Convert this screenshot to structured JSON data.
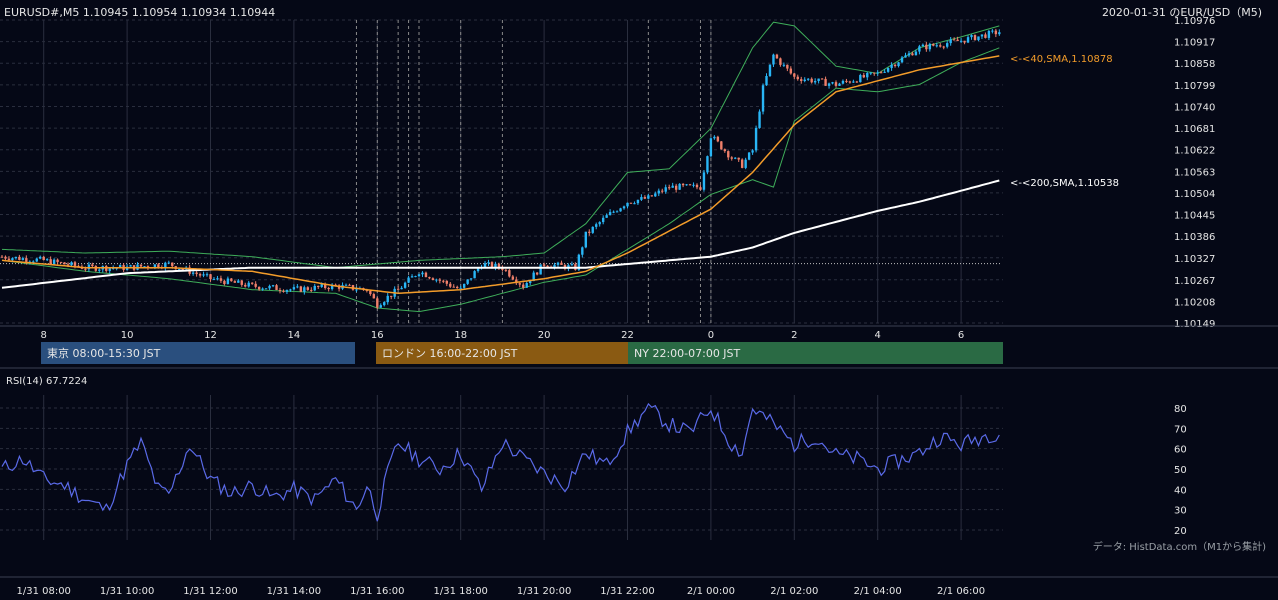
{
  "header": {
    "symbol_line": "EURUSD#,M5 1.10945 1.10954 1.10934 1.10944",
    "title": "2020-01-31 のEUR/USD（M5)"
  },
  "price_axis": {
    "ticks": [
      "1.10976",
      "1.10917",
      "1.10858",
      "1.10799",
      "1.10740",
      "1.10681",
      "1.10622",
      "1.10563",
      "1.10504",
      "1.10445",
      "1.10386",
      "1.10327",
      "1.10267",
      "1.10208",
      "1.10149"
    ]
  },
  "time_axis": {
    "hour_ticks": [
      "8",
      "10",
      "12",
      "14",
      "16",
      "18",
      "20",
      "22",
      "0",
      "2",
      "4",
      "6"
    ],
    "date_ticks": [
      "1/31 08:00",
      "1/31 10:00",
      "1/31 12:00",
      "1/31 14:00",
      "1/31 16:00",
      "1/31 18:00",
      "1/31 20:00",
      "1/31 22:00",
      "2/1 00:00",
      "2/1 02:00",
      "2/1 04:00",
      "2/1 06:00"
    ]
  },
  "sessions": [
    {
      "label": "東京 08:00-15:30 JST",
      "color": "#2a4f7e"
    },
    {
      "label": "ロンドン 16:00-22:00 JST",
      "color": "#8a5a12"
    },
    {
      "label": "NY 22:00-07:00 JST",
      "color": "#2a6a44"
    }
  ],
  "sma_labels": {
    "sma40": "<-<40,SMA,1.10878",
    "sma200": "<-<200,SMA,1.10538"
  },
  "rsi": {
    "label": "RSI(14) 67.7224",
    "ticks": [
      "80",
      "70",
      "60",
      "50",
      "40",
      "30",
      "20"
    ]
  },
  "source_note": "データ: HistData.com（M1から集計)",
  "colors": {
    "background": "#050816",
    "up_candle": "#29b6f6",
    "down_candle": "#ef7f6a",
    "sma40": "#f39c2a",
    "sma200": "#ffffff",
    "bollinger": "#3fae5a",
    "rsi_line": "#5a6ae8",
    "grid": "#2a2e3e"
  },
  "chart_data": [
    {
      "type": "candlestick",
      "title": "2020-01-31 のEUR/USD（M5)",
      "x_range": [
        "1/31 07:00",
        "2/1 06:55"
      ],
      "ylim": [
        1.10149,
        1.10976
      ],
      "hline": 1.10311,
      "price_path": {
        "times": [
          "07:00",
          "08:00",
          "09:00",
          "10:00",
          "11:00",
          "12:00",
          "13:00",
          "14:00",
          "15:00",
          "15:45",
          "16:00",
          "16:30",
          "17:00",
          "18:00",
          "18:30",
          "19:00",
          "19:30",
          "20:00",
          "20:45",
          "21:00",
          "21:30",
          "22:00",
          "22:30",
          "23:00",
          "23:45",
          "00:00",
          "00:30",
          "00:45",
          "01:00",
          "01:15",
          "01:30",
          "02:00",
          "03:00",
          "04:00",
          "05:00",
          "06:00",
          "06:55"
        ],
        "close": [
          1.1033,
          1.1032,
          1.103,
          1.103,
          1.1031,
          1.1027,
          1.1025,
          1.1024,
          1.1025,
          1.1024,
          1.102,
          1.1024,
          1.1029,
          1.1024,
          1.1031,
          1.103,
          1.1025,
          1.1031,
          1.103,
          1.1039,
          1.1044,
          1.1048,
          1.1049,
          1.1052,
          1.1052,
          1.1066,
          1.106,
          1.1058,
          1.1062,
          1.1079,
          1.1088,
          1.1082,
          1.108,
          1.1083,
          1.109,
          1.1092,
          1.10944
        ]
      },
      "sma40": {
        "times": [
          "07:00",
          "09:00",
          "11:00",
          "13:00",
          "15:00",
          "16:30",
          "18:00",
          "20:00",
          "21:00",
          "22:00",
          "23:00",
          "00:00",
          "01:00",
          "02:00",
          "03:00",
          "04:00",
          "05:00",
          "06:00",
          "06:55"
        ],
        "values": [
          1.1032,
          1.103,
          1.103,
          1.1029,
          1.1025,
          1.1023,
          1.1024,
          1.1027,
          1.1029,
          1.1034,
          1.104,
          1.1046,
          1.1056,
          1.1069,
          1.1078,
          1.1081,
          1.1084,
          1.1086,
          1.10878
        ]
      },
      "sma200": {
        "times": [
          "07:00",
          "10:00",
          "13:00",
          "16:00",
          "19:00",
          "21:00",
          "23:00",
          "00:00",
          "01:00",
          "02:00",
          "03:00",
          "04:00",
          "05:00",
          "06:00",
          "06:55"
        ],
        "values": [
          1.10245,
          1.10285,
          1.103,
          1.103,
          1.103,
          1.103,
          1.1032,
          1.1033,
          1.10355,
          1.10395,
          1.10425,
          1.10455,
          1.1048,
          1.1051,
          1.10538
        ]
      },
      "bollinger_upper": {
        "times": [
          "07:00",
          "09:00",
          "11:00",
          "13:00",
          "15:00",
          "17:00",
          "19:00",
          "20:00",
          "21:00",
          "22:00",
          "23:00",
          "00:00",
          "01:00",
          "01:30",
          "02:00",
          "03:00",
          "04:00",
          "05:00",
          "06:00",
          "06:55"
        ],
        "values": [
          1.1035,
          1.1034,
          1.10345,
          1.1033,
          1.103,
          1.1032,
          1.1033,
          1.1034,
          1.1042,
          1.1056,
          1.1057,
          1.1068,
          1.109,
          1.1097,
          1.1096,
          1.1085,
          1.1083,
          1.109,
          1.1093,
          1.1096
        ]
      },
      "bollinger_lower": {
        "times": [
          "07:00",
          "09:00",
          "11:00",
          "13:00",
          "15:00",
          "16:00",
          "17:00",
          "18:00",
          "19:00",
          "20:00",
          "21:00",
          "22:00",
          "23:00",
          "00:00",
          "01:00",
          "01:30",
          "02:00",
          "03:00",
          "04:00",
          "05:00",
          "06:00",
          "06:55"
        ],
        "values": [
          1.1032,
          1.1029,
          1.1027,
          1.1024,
          1.1023,
          1.1019,
          1.1018,
          1.102,
          1.1023,
          1.1026,
          1.1028,
          1.1035,
          1.1042,
          1.105,
          1.1054,
          1.1052,
          1.107,
          1.1079,
          1.1078,
          1.108,
          1.1086,
          1.109
        ]
      },
      "session_lines": [
        "15:30",
        "16:00",
        "16:30",
        "16:45",
        "17:00",
        "18:00",
        "19:00",
        "22:30",
        "23:45",
        "00:00"
      ]
    },
    {
      "type": "line",
      "title": "RSI(14) 67.7224",
      "ylim": [
        20,
        80
      ],
      "series": [
        {
          "name": "RSI(14)",
          "times": [
            "07:00",
            "07:30",
            "08:00",
            "08:30",
            "09:00",
            "09:30",
            "10:00",
            "10:20",
            "10:45",
            "11:00",
            "11:30",
            "12:00",
            "12:30",
            "13:00",
            "13:30",
            "14:00",
            "14:30",
            "15:00",
            "15:30",
            "15:45",
            "16:00",
            "16:15",
            "16:30",
            "17:00",
            "17:30",
            "18:00",
            "18:30",
            "19:00",
            "19:30",
            "20:00",
            "20:30",
            "21:00",
            "21:30",
            "22:00",
            "22:30",
            "23:00",
            "23:30",
            "00:00",
            "00:30",
            "00:45",
            "01:00",
            "01:30",
            "02:00",
            "02:30",
            "03:00",
            "03:30",
            "04:00",
            "04:30",
            "05:00",
            "05:30",
            "06:00",
            "06:30",
            "06:55"
          ],
          "values": [
            50,
            55,
            45,
            42,
            35,
            30,
            52,
            63,
            40,
            37,
            62,
            45,
            38,
            42,
            36,
            40,
            35,
            45,
            30,
            42,
            28,
            48,
            63,
            55,
            50,
            58,
            40,
            63,
            55,
            48,
            42,
            58,
            52,
            68,
            80,
            72,
            68,
            80,
            62,
            58,
            80,
            72,
            62,
            66,
            57,
            55,
            50,
            54,
            58,
            66,
            62,
            66,
            68
          ]
        }
      ]
    }
  ]
}
